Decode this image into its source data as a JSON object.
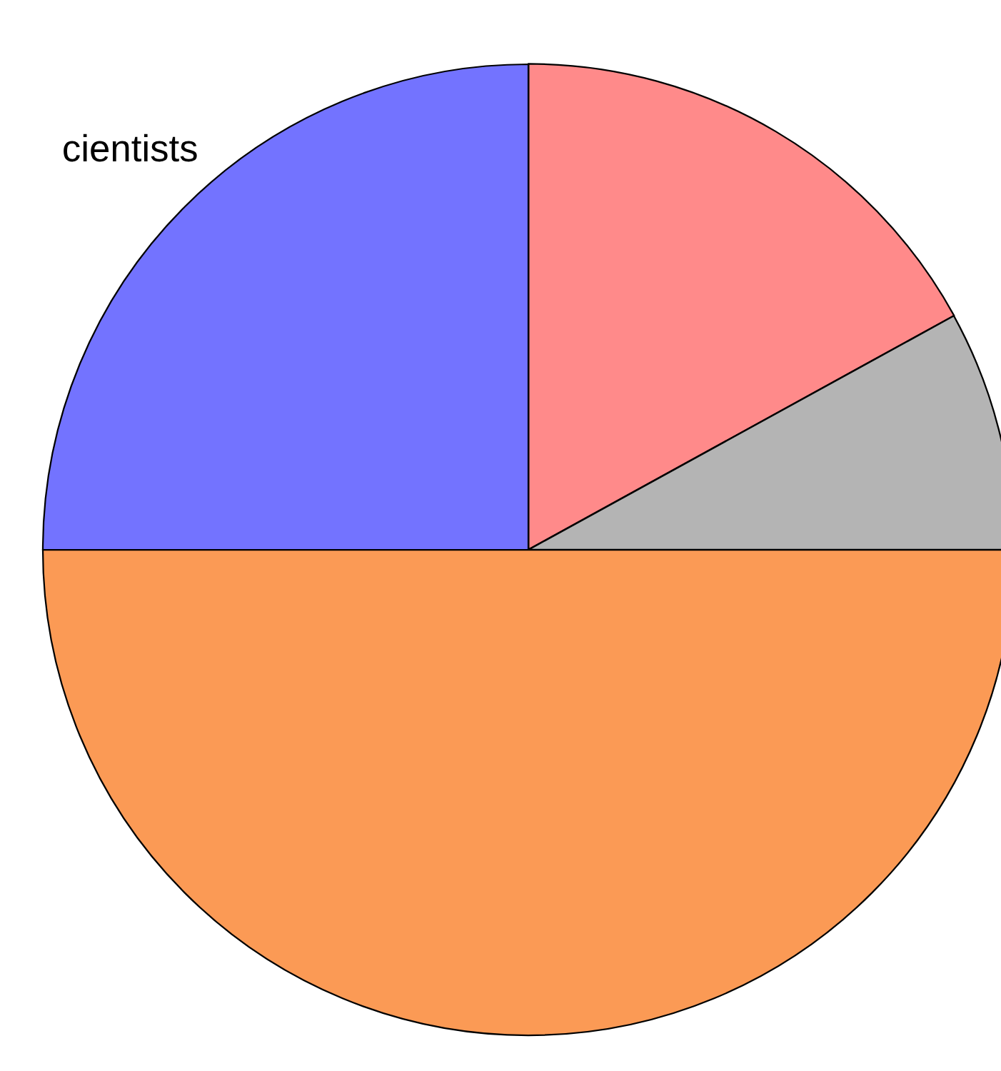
{
  "chart_data": {
    "type": "pie",
    "categories": [
      null,
      null,
      null,
      "cientists"
    ],
    "values": [
      17,
      8,
      50,
      25
    ],
    "colors": [
      "#ff8a8a",
      "#b4b4b4",
      "#fb9a55",
      "#7373ff"
    ]
  }
}
